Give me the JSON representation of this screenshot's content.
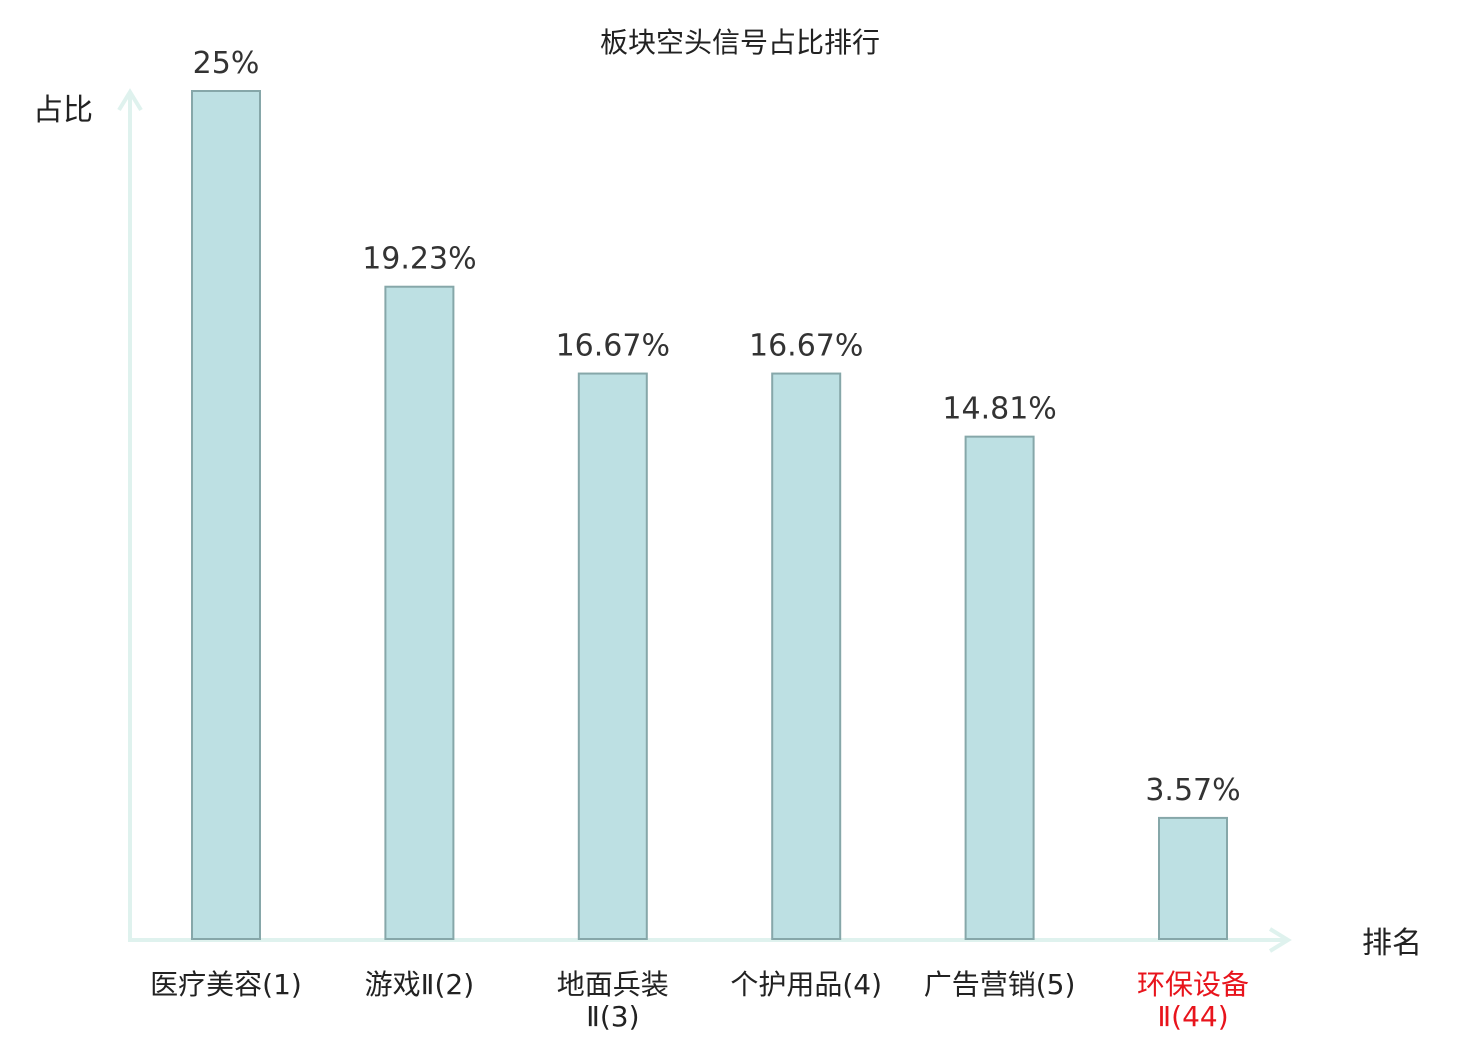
{
  "chart_data": {
    "type": "bar",
    "title": "板块空头信号占比排行",
    "ylabel": "占比",
    "xlabel": "排名",
    "ylim": [
      0,
      25
    ],
    "grid": false,
    "legend": "none",
    "categories": [
      {
        "lines": [
          "医疗美容(1)"
        ],
        "highlight": false
      },
      {
        "lines": [
          "游戏Ⅱ(2)"
        ],
        "highlight": false
      },
      {
        "lines": [
          "地面兵装",
          "Ⅱ(3)"
        ],
        "highlight": false
      },
      {
        "lines": [
          "个护用品(4)"
        ],
        "highlight": false
      },
      {
        "lines": [
          "广告营销(5)"
        ],
        "highlight": false
      },
      {
        "lines": [
          "环保设备",
          "Ⅱ(44)"
        ],
        "highlight": true
      }
    ],
    "values": [
      25,
      19.23,
      16.67,
      16.67,
      14.81,
      3.57
    ],
    "value_labels": [
      "25%",
      "19.23%",
      "16.67%",
      "16.67%",
      "14.81%",
      "3.57%"
    ],
    "colors": {
      "bar_fill": "#bde0e3",
      "bar_stroke": "#86a7a9",
      "axis": "#dff2ee",
      "text": "#222222",
      "highlight_text": "#e8141c"
    }
  }
}
